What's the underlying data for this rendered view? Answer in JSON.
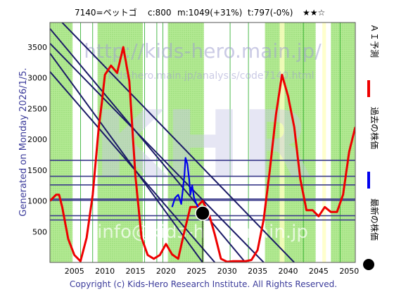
{
  "header": {
    "code": "7140=ペットゴ",
    "current": "c:800",
    "max": "m:1049(+31%)",
    "min": "t:797(-0%)",
    "stars": "★★☆"
  },
  "side_left": "Generated on Monday 2026/1/5.",
  "footer": "Copyright (c) Kids-Hero Research Institute. All Rights Reserved.",
  "watermarks": {
    "site": "http://kids-hero.main.jp/",
    "path": "kids-hero.main.jp/analysis/code7140.html",
    "big": "KHR",
    "email": "info@kids-hero.main.jp"
  },
  "legend": [
    {
      "label": "ＡＩ予測",
      "color": "#ee0000",
      "type": "line"
    },
    {
      "label": "過去の株価",
      "color": "#0000ee",
      "type": "line"
    },
    {
      "label": "最新の株価",
      "color": "#000000",
      "type": "dot"
    }
  ],
  "colors": {
    "background": "#ffffff",
    "green_fill": "#b0e890",
    "green_line": "#22aa22",
    "yellow_band": "#ffffc0",
    "diag_line": "#1a1a66",
    "horiz_line": "#3a3a8a",
    "prediction": "#ee0000",
    "past": "#0000ee",
    "latest": "#000000"
  },
  "chart_data": {
    "type": "line",
    "xlim": [
      2001,
      2051
    ],
    "ylim": [
      0,
      3900
    ],
    "x_ticks": [
      2005,
      2010,
      2015,
      2020,
      2025,
      2030,
      2035,
      2040,
      2045,
      2050
    ],
    "y_ticks": [
      500,
      1000,
      1500,
      2000,
      2500,
      3000,
      3500
    ],
    "horizontal_levels": [
      690,
      760,
      1010,
      1030,
      1260,
      1400,
      1660
    ],
    "diagonal_lines": [
      {
        "x": [
          2001,
          2033
        ],
        "y": [
          3800,
          0
        ]
      },
      {
        "x": [
          2001,
          2036
        ],
        "y": [
          3560,
          0
        ]
      },
      {
        "x": [
          2003,
          2041
        ],
        "y": [
          3900,
          0
        ]
      },
      {
        "x": [
          2001,
          2026
        ],
        "y": [
          3400,
          0
        ]
      },
      {
        "x": [
          2001,
          2028
        ],
        "y": [
          3100,
          0
        ]
      }
    ],
    "series": [
      {
        "name": "ＡＩ予測",
        "x": [
          2001,
          2002,
          2002.5,
          2003,
          2004,
          2005,
          2006,
          2007,
          2008,
          2009,
          2009.5,
          2010,
          2011,
          2012,
          2013,
          2014,
          2015,
          2016,
          2017,
          2018,
          2019,
          2020,
          2021,
          2022,
          2023,
          2024,
          2025,
          2026,
          2027,
          2028,
          2029,
          2030,
          2031,
          2032,
          2033,
          2034,
          2035,
          2036,
          2037,
          2038,
          2039,
          2040,
          2041,
          2042,
          2043,
          2044,
          2045,
          2046,
          2047,
          2048,
          2049,
          2050,
          2051
        ],
        "y": [
          1000,
          1100,
          1100,
          900,
          380,
          120,
          20,
          400,
          1100,
          2200,
          2600,
          3050,
          3200,
          3080,
          3500,
          2950,
          1400,
          400,
          120,
          60,
          120,
          300,
          130,
          60,
          500,
          900,
          900,
          1000,
          800,
          450,
          60,
          10,
          20,
          20,
          20,
          40,
          200,
          700,
          1500,
          2400,
          3050,
          2700,
          2200,
          1350,
          850,
          850,
          750,
          900,
          820,
          820,
          1100,
          1800,
          2200
        ]
      },
      {
        "name": "過去の株価",
        "x": [
          2021,
          2021.5,
          2022,
          2022.5,
          2023,
          2023.2,
          2023.5,
          2023.8,
          2024,
          2024.3,
          2024.6,
          2025,
          2025.5,
          2026
        ],
        "y": [
          900,
          1050,
          1100,
          950,
          1400,
          1700,
          1600,
          1350,
          1100,
          1250,
          1050,
          950,
          850,
          800
        ]
      }
    ],
    "latest_point": {
      "x": 2026,
      "y": 800
    }
  }
}
